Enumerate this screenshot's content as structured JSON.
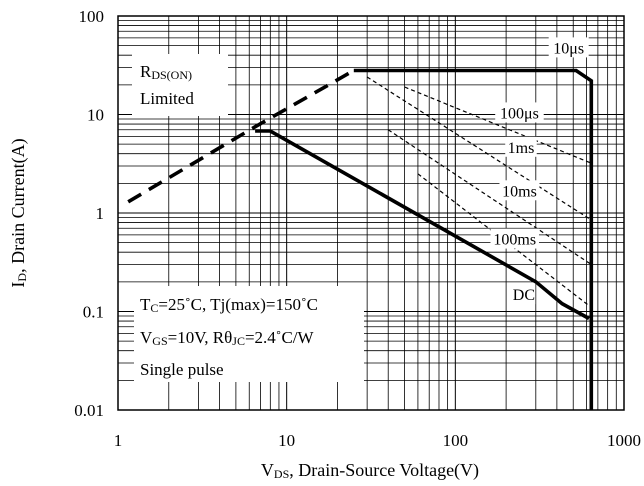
{
  "chart_data": {
    "type": "line",
    "title": "",
    "xscale": "log",
    "yscale": "log",
    "xlim": [
      1,
      1000
    ],
    "ylim": [
      0.01,
      100
    ],
    "grid": true,
    "x_ticks": [
      "1",
      "10",
      "100",
      "1000"
    ],
    "y_ticks": [
      "100",
      "10",
      "1",
      "0.1",
      "0.01"
    ],
    "xlabel": {
      "symbol": "V",
      "sub": "DS",
      "rest": ", Drain-Source Voltage(V)"
    },
    "ylabel": {
      "symbol": "I",
      "sub": "D",
      "rest": ", Drain Current(A)"
    },
    "rds_label": {
      "symbol": "R",
      "sub": "DS(ON)",
      "line2": "Limited"
    },
    "conditions": {
      "line1": {
        "a": "T",
        "a_sub": "C",
        "b": "=25˚C, Tj(max)=150˚C"
      },
      "line2": {
        "a": "V",
        "a_sub": "GS",
        "b": "=10V, Rθ",
        "b_sub": "JC",
        "c": "=2.4˚C/W"
      },
      "line3": "Single pulse"
    },
    "series": [
      {
        "name": "10μs",
        "style": "solid-thick",
        "x": [
          25,
          520,
          640,
          640
        ],
        "y": [
          28,
          28,
          22,
          0.01
        ]
      },
      {
        "name": "100μs",
        "style": "dashed",
        "x": [
          50,
          640
        ],
        "y": [
          19,
          3.2
        ]
      },
      {
        "name": "1ms",
        "style": "dashed",
        "x": [
          30,
          640
        ],
        "y": [
          24,
          0.85
        ]
      },
      {
        "name": "10ms",
        "style": "dashed",
        "x": [
          40,
          640
        ],
        "y": [
          7,
          0.3
        ]
      },
      {
        "name": "100ms",
        "style": "dashed",
        "x": [
          60,
          640
        ],
        "y": [
          2.5,
          0.11
        ]
      },
      {
        "name": "DC",
        "style": "solid-thick",
        "x": [
          6.5,
          8,
          300,
          430,
          620
        ],
        "y": [
          6.8,
          6.8,
          0.2,
          0.12,
          0.085
        ]
      },
      {
        "name": "",
        "style": "dashed-thick",
        "x": [
          1.15,
          6.5,
          25
        ],
        "y": [
          1.3,
          7.5,
          28
        ]
      }
    ],
    "annotations": [
      {
        "text": "10μs",
        "x": 470,
        "y": 48
      },
      {
        "text": "100μs",
        "x": 240,
        "y": 10.5
      },
      {
        "text": "1ms",
        "x": 245,
        "y": 4.7
      },
      {
        "text": "10ms",
        "x": 240,
        "y": 1.7
      },
      {
        "text": "100ms",
        "x": 225,
        "y": 0.55
      },
      {
        "text": "DC",
        "x": 255,
        "y": 0.15
      }
    ]
  }
}
